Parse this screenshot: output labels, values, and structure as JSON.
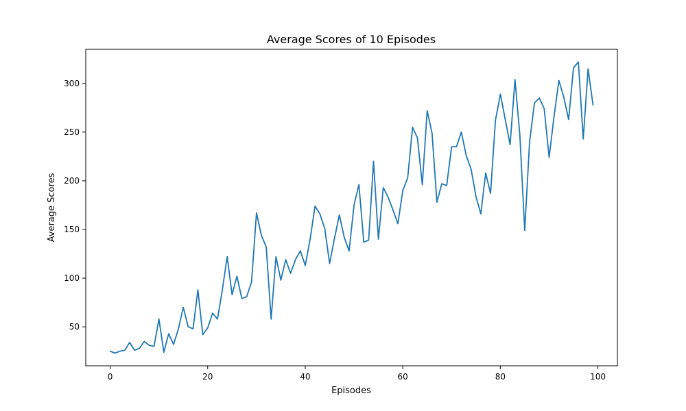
{
  "chart_data": {
    "type": "line",
    "title": "Average Scores of 10 Episodes",
    "xlabel": "Episodes",
    "ylabel": "Average Scores",
    "xlim": [
      -5,
      104
    ],
    "ylim": [
      10,
      335
    ],
    "xticks": [
      0,
      20,
      40,
      60,
      80,
      100
    ],
    "yticks": [
      50,
      100,
      150,
      200,
      250,
      300
    ],
    "grid": false,
    "color": "#1f77b4",
    "series": [
      {
        "x": [
          0,
          1,
          2,
          3,
          4,
          5,
          6,
          7,
          8,
          9,
          10,
          11,
          12,
          13,
          14,
          15,
          16,
          17,
          18,
          19,
          20,
          21,
          22,
          23,
          24,
          25,
          26,
          27,
          28,
          29,
          30,
          31,
          32,
          33,
          34,
          35,
          36,
          37,
          38,
          39,
          40,
          41,
          42,
          43,
          44,
          45,
          46,
          47,
          48,
          49,
          50,
          51,
          52,
          53,
          54,
          55,
          56,
          57,
          58,
          59,
          60,
          61,
          62,
          63,
          64,
          65,
          66,
          67,
          68,
          69,
          70,
          71,
          72,
          73,
          74,
          75,
          76,
          77,
          78,
          79,
          80,
          81,
          82,
          83,
          84,
          85,
          86,
          87,
          88,
          89,
          90,
          91,
          92,
          93,
          94,
          95,
          96,
          97,
          98,
          99
        ],
        "values": [
          25,
          23,
          25,
          26,
          34,
          26,
          28,
          35,
          31,
          30,
          58,
          24,
          43,
          32,
          48,
          70,
          50,
          48,
          88,
          42,
          49,
          64,
          58,
          88,
          122,
          83,
          102,
          79,
          81,
          96,
          167,
          144,
          132,
          58,
          122,
          98,
          119,
          105,
          119,
          128,
          113,
          140,
          174,
          166,
          151,
          115,
          141,
          165,
          142,
          128,
          175,
          196,
          137,
          139,
          220,
          140,
          193,
          183,
          170,
          156,
          190,
          203,
          255,
          244,
          196,
          272,
          249,
          178,
          197,
          195,
          235,
          235,
          250,
          226,
          212,
          184,
          166,
          208,
          187,
          262,
          289,
          263,
          237,
          304,
          247,
          149,
          240,
          280,
          285,
          274,
          224,
          266,
          303,
          286,
          263,
          316,
          322,
          243,
          315,
          278
        ]
      }
    ]
  }
}
